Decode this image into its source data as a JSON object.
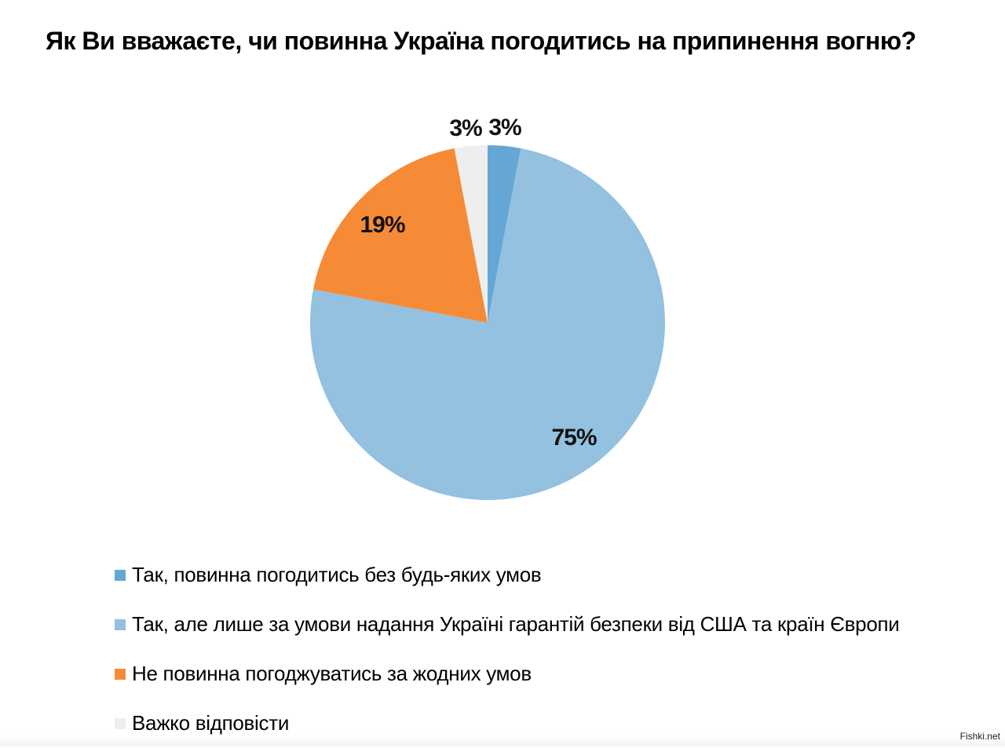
{
  "title": "Як Ви вважаєте, чи повинна Україна погодитись на припинення вогню?",
  "watermark": "Fishki.net",
  "chart_data": {
    "type": "pie",
    "title": "Як Ви вважаєте, чи повинна Україна погодитись на припинення вогню?",
    "legend_position": "bottom",
    "slices": [
      {
        "label": "Так, повинна погодитись без будь-яких умов",
        "value": 3,
        "value_label": "3%",
        "color": "#65a7d4"
      },
      {
        "label": "Так, але лише за умови надання Україні гарантій безпеки від США та країн Європи",
        "value": 75,
        "value_label": "75%",
        "color": "#93c1df"
      },
      {
        "label": "Не повинна погоджуватись за жодних умов",
        "value": 19,
        "value_label": "19%",
        "color": "#f68b37"
      },
      {
        "label": "Важко відповісти",
        "value": 3,
        "value_label": "3%",
        "color": "#eeeeee"
      }
    ]
  }
}
